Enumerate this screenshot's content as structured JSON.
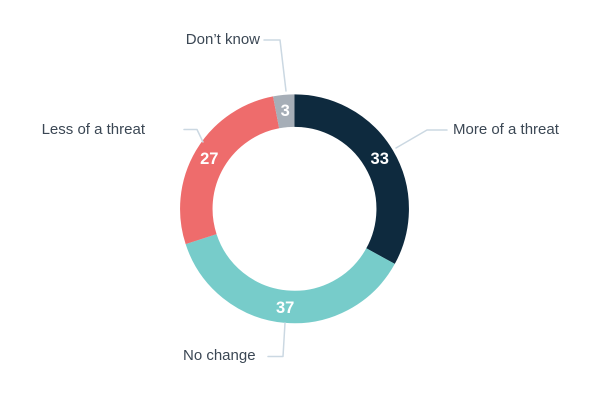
{
  "page": {
    "background_color": "#FFFFFF"
  },
  "chart_data": {
    "type": "pie",
    "variant": "donut",
    "title": "",
    "unit": "percent",
    "total": 100,
    "start_angle_deg": 0,
    "direction": "clockwise",
    "legend_position": "outside-callouts",
    "segments": [
      {
        "label": "More of a threat",
        "value": 33,
        "color": "#0E2A3E"
      },
      {
        "label": "No change",
        "value": 37,
        "color": "#77CCCA"
      },
      {
        "label": "Less of a threat",
        "value": 27,
        "color": "#EE6C6C"
      },
      {
        "label": "Don’t know",
        "value": 3,
        "color": "#A6AEB7"
      }
    ],
    "value_label_color": "#FFFFFF",
    "category_label_color": "#3B4754",
    "leader_line_color": "#CBD8E2",
    "hole_color": "#FFFFFF"
  }
}
